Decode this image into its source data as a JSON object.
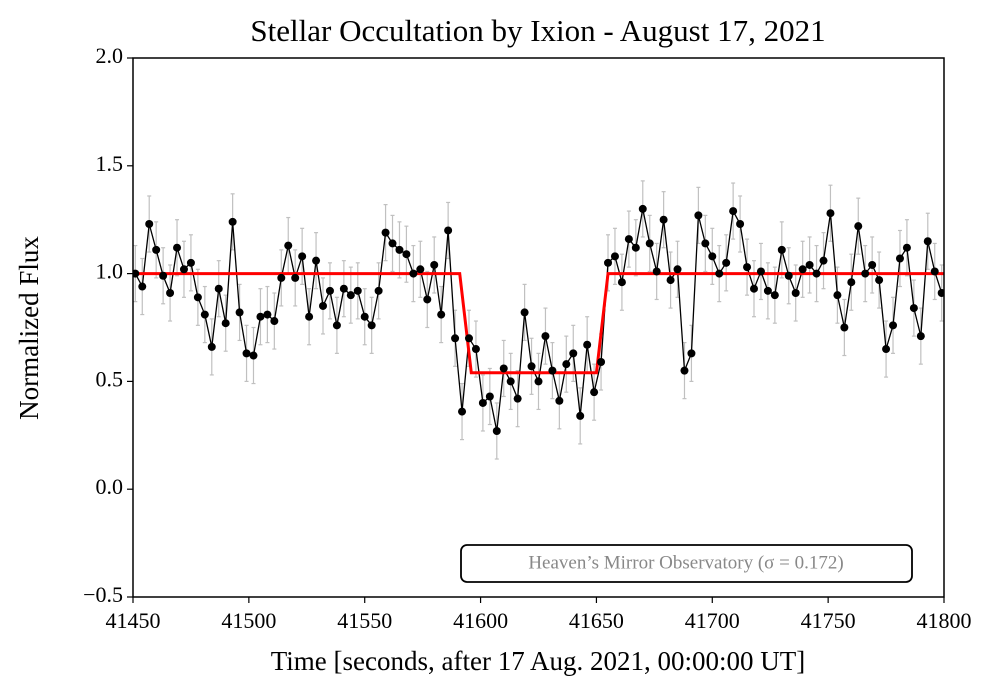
{
  "chart_data": {
    "type": "line",
    "title": "Stellar Occultation by Ixion - August 17, 2021",
    "xlabel": "Time [seconds, after 17 Aug. 2021, 00:00:00 UT]",
    "ylabel": "Normalized Flux",
    "annotation": "Heaven’s Mirror Observatory (σ = 0.172)",
    "xlim": [
      41450,
      41800
    ],
    "ylim": [
      -0.5,
      2.0
    ],
    "xticks": [
      41450,
      41500,
      41550,
      41600,
      41650,
      41700,
      41750,
      41800
    ],
    "yticks": [
      {
        "value": -0.5,
        "label": "−0.5"
      },
      {
        "value": 0,
        "label": "0.0"
      },
      0.5,
      {
        "value": 1,
        "label": "1.0"
      },
      1.5,
      {
        "value": 2,
        "label": "2.0"
      }
    ],
    "series": [
      {
        "color": "#000000",
        "error_color": "#c0c0c0",
        "yerr": 0.13,
        "x": [
          41451,
          41454,
          41457,
          41460,
          41463,
          41466,
          41469,
          41472,
          41475,
          41478,
          41481,
          41484,
          41487,
          41490,
          41493,
          41496,
          41499,
          41502,
          41505,
          41508,
          41511,
          41514,
          41517,
          41520,
          41523,
          41526,
          41529,
          41532,
          41535,
          41538,
          41541,
          41544,
          41547,
          41550,
          41553,
          41556,
          41559,
          41562,
          41565,
          41568,
          41571,
          41574,
          41577,
          41580,
          41583,
          41586,
          41589,
          41592,
          41595,
          41598,
          41601,
          41604,
          41607,
          41610,
          41613,
          41616,
          41619,
          41622,
          41625,
          41628,
          41631,
          41634,
          41637,
          41640,
          41643,
          41646,
          41649,
          41652,
          41655,
          41658,
          41661,
          41664,
          41667,
          41670,
          41673,
          41676,
          41679,
          41682,
          41685,
          41688,
          41691,
          41694,
          41697,
          41700,
          41703,
          41706,
          41709,
          41712,
          41715,
          41718,
          41721,
          41724,
          41727,
          41730,
          41733,
          41736,
          41739,
          41742,
          41745,
          41748,
          41751,
          41754,
          41757,
          41760,
          41763,
          41766,
          41769,
          41772,
          41775,
          41778,
          41781,
          41784,
          41787,
          41790,
          41793,
          41796,
          41799
        ],
        "values": [
          1.0,
          0.94,
          1.23,
          1.11,
          0.99,
          0.91,
          1.12,
          1.02,
          1.05,
          0.89,
          0.81,
          0.66,
          0.93,
          0.77,
          1.24,
          0.82,
          0.63,
          0.62,
          0.8,
          0.81,
          0.78,
          0.98,
          1.13,
          0.98,
          1.08,
          0.8,
          1.06,
          0.85,
          0.92,
          0.76,
          0.93,
          0.9,
          0.92,
          0.8,
          0.76,
          0.92,
          1.19,
          1.14,
          1.11,
          1.09,
          1.0,
          1.02,
          0.88,
          1.04,
          0.81,
          1.2,
          0.7,
          0.36,
          0.7,
          0.65,
          0.4,
          0.43,
          0.27,
          0.56,
          0.5,
          0.42,
          0.82,
          0.57,
          0.5,
          0.71,
          0.55,
          0.41,
          0.58,
          0.63,
          0.34,
          0.67,
          0.45,
          0.59,
          1.05,
          1.08,
          0.96,
          1.16,
          1.12,
          1.3,
          1.14,
          1.01,
          1.25,
          0.97,
          1.02,
          0.55,
          0.63,
          1.27,
          1.14,
          1.08,
          1.0,
          1.05,
          1.29,
          1.23,
          1.03,
          0.93,
          1.01,
          0.92,
          0.9,
          1.11,
          0.99,
          0.91,
          1.02,
          1.04,
          1.0,
          1.06,
          1.28,
          0.9,
          0.75,
          0.96,
          1.22,
          1.0,
          1.04,
          0.97,
          0.65,
          0.76,
          1.07,
          1.12,
          0.84,
          0.71,
          1.15,
          1.01,
          0.91
        ]
      },
      {
        "color": "#ff0000",
        "x": [
          41450,
          41591,
          41596,
          41650,
          41655,
          41800
        ],
        "values": [
          1,
          1,
          0.54,
          0.54,
          1,
          1
        ]
      }
    ]
  }
}
